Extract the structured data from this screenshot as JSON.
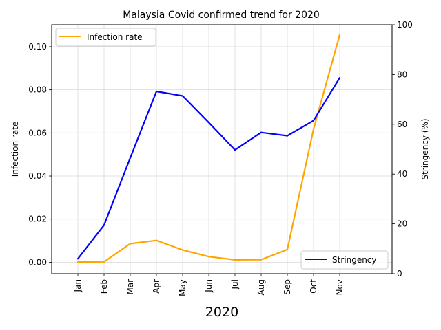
{
  "chart_data": {
    "type": "line",
    "title": "Malaysia Covid confirmed trend for 2020",
    "xlabel": "2020",
    "categories": [
      "Jan",
      "Feb",
      "Mar",
      "Apr",
      "May",
      "Jun",
      "Jul",
      "Aug",
      "Sep",
      "Oct",
      "Nov"
    ],
    "left_axis": {
      "label": "Infection rate",
      "ylim": [
        -0.0053,
        0.1102
      ],
      "ticks": [
        0.0,
        0.02,
        0.04,
        0.06,
        0.08,
        0.1
      ],
      "tick_labels": [
        "0.00",
        "0.02",
        "0.04",
        "0.06",
        "0.08",
        "0.10"
      ]
    },
    "right_axis": {
      "label": "Stringency (%)",
      "ylim": [
        0,
        100
      ],
      "ticks": [
        0,
        20,
        40,
        60,
        80,
        100
      ],
      "tick_labels": [
        "0",
        "20",
        "40",
        "60",
        "80",
        "100"
      ]
    },
    "series": [
      {
        "name": "Infection rate",
        "axis": "left",
        "color": "#ffa500",
        "values": [
          0.0001,
          0.0002,
          0.0086,
          0.0101,
          0.0057,
          0.0026,
          0.0011,
          0.0012,
          0.0059,
          0.0617,
          0.1056
        ]
      },
      {
        "name": "Stringency",
        "axis": "right",
        "color": "#0000ff",
        "values": [
          6.0,
          19.5,
          46.5,
          73.2,
          71.4,
          60.7,
          49.7,
          56.7,
          55.4,
          61.5,
          78.7
        ]
      }
    ],
    "legend_left": {
      "label": "Infection rate",
      "placement": "upper left"
    },
    "legend_right": {
      "label": "Stringency",
      "placement": "lower right"
    },
    "grid": true
  }
}
